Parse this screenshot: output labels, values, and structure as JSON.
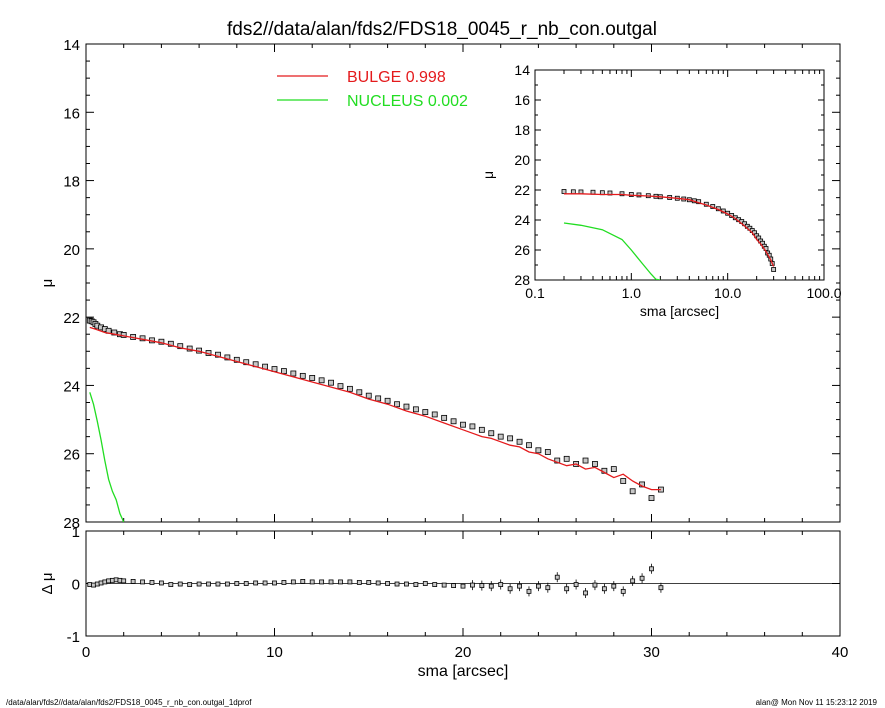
{
  "title": "fds2//data/alan/fds2/FDS18_0045_r_nb_con.outgal",
  "footer_left": "/data/alan/fds2//data/alan/fds2/FDS18_0045_r_nb_con.outgal_1dprof",
  "footer_right": "alan@  Mon Nov 11 15:23:12 2019",
  "colors": {
    "bulge": "#e41a1c",
    "nucleus": "#22dd22",
    "data": "#000000",
    "marker_fill": "#c8c8c8"
  },
  "chart_data": [
    {
      "id": "main",
      "type": "scatter",
      "ylabel": "μ",
      "xlim": [
        0,
        40
      ],
      "ylim": [
        28,
        14
      ],
      "y_inverted": true,
      "yticks": [
        14,
        16,
        18,
        20,
        22,
        24,
        26,
        28
      ],
      "legend": [
        {
          "label": "BULGE  0.998",
          "color": "#e41a1c"
        },
        {
          "label": "NUCLEUS  0.002",
          "color": "#22dd22"
        }
      ],
      "legend_position": "top-center",
      "series": [
        {
          "name": "BULGE",
          "kind": "line",
          "color": "#e41a1c",
          "x": [
            0.2,
            0.5,
            1,
            1.5,
            2,
            3,
            4,
            5,
            6,
            7,
            8,
            9,
            10,
            11,
            12,
            13,
            14,
            15,
            16,
            17,
            18,
            19,
            20,
            20.5,
            21,
            21.5,
            22,
            22.5,
            23,
            23.5,
            24,
            24.5,
            25,
            25.5,
            26,
            26.5,
            27,
            27.5,
            28,
            28.5,
            29,
            29.5,
            30,
            30.5
          ],
          "y": [
            22.3,
            22.35,
            22.45,
            22.5,
            22.55,
            22.65,
            22.75,
            22.9,
            23.0,
            23.15,
            23.3,
            23.45,
            23.6,
            23.75,
            23.9,
            24.05,
            24.2,
            24.4,
            24.55,
            24.75,
            24.9,
            25.1,
            25.3,
            25.4,
            25.5,
            25.55,
            25.65,
            25.75,
            25.8,
            25.95,
            26.0,
            26.15,
            26.25,
            26.35,
            26.3,
            26.45,
            26.4,
            26.55,
            26.7,
            26.6,
            26.8,
            26.95,
            27.05,
            27.05
          ]
        },
        {
          "name": "NUCLEUS",
          "kind": "line",
          "color": "#22dd22",
          "x": [
            0.2,
            0.4,
            0.6,
            0.8,
            1.0,
            1.2,
            1.4,
            1.6,
            1.8,
            2.0
          ],
          "y": [
            24.2,
            24.55,
            25.05,
            25.6,
            26.2,
            26.75,
            27.1,
            27.35,
            27.75,
            28.0
          ]
        },
        {
          "name": "data",
          "kind": "markers",
          "color": "#000000",
          "x": [
            0.2,
            0.3,
            0.4,
            0.5,
            0.6,
            0.8,
            1,
            1.2,
            1.5,
            1.8,
            2,
            2.5,
            3,
            3.5,
            4,
            4.5,
            5,
            5.5,
            6,
            6.5,
            7,
            7.5,
            8,
            8.5,
            9,
            9.5,
            10,
            10.5,
            11,
            11.5,
            12,
            12.5,
            13,
            13.5,
            14,
            14.5,
            15,
            15.5,
            16,
            16.5,
            17,
            17.5,
            18,
            18.5,
            19,
            19.5,
            20,
            20.5,
            21,
            21.5,
            22,
            22.5,
            23,
            23.5,
            24,
            24.5,
            25,
            25.5,
            26,
            26.5,
            27,
            27.5,
            28,
            28.5,
            29,
            29.5,
            30,
            30.5
          ],
          "y": [
            22.1,
            22.12,
            22.15,
            22.2,
            22.25,
            22.3,
            22.35,
            22.4,
            22.45,
            22.5,
            22.52,
            22.58,
            22.62,
            22.68,
            22.72,
            22.78,
            22.85,
            22.92,
            22.98,
            23.05,
            23.1,
            23.18,
            23.25,
            23.32,
            23.38,
            23.45,
            23.52,
            23.58,
            23.65,
            23.72,
            23.78,
            23.85,
            23.92,
            24.02,
            24.1,
            24.2,
            24.3,
            24.38,
            24.45,
            24.55,
            24.62,
            24.7,
            24.78,
            24.85,
            24.95,
            25.05,
            25.15,
            25.2,
            25.3,
            25.4,
            25.5,
            25.55,
            25.65,
            25.75,
            25.9,
            25.95,
            26.2,
            26.15,
            26.3,
            26.2,
            26.3,
            26.5,
            26.45,
            26.8,
            27.1,
            26.9,
            27.3,
            27.05
          ]
        }
      ]
    },
    {
      "id": "inset",
      "type": "scatter",
      "ylabel": "μ",
      "xlabel": "sma [arcsec]",
      "x_scale": "log",
      "xlim": [
        0.1,
        100
      ],
      "xticks": [
        "0.1",
        "1.0",
        "10.0",
        "100.0"
      ],
      "ylim": [
        28,
        14
      ],
      "y_inverted": true,
      "yticks": [
        14,
        16,
        18,
        20,
        22,
        24,
        26,
        28
      ],
      "series": [
        {
          "name": "BULGE",
          "kind": "line",
          "color": "#e41a1c",
          "x": [
            0.2,
            0.3,
            0.5,
            0.8,
            1,
            1.5,
            2,
            3,
            4,
            5,
            6,
            8,
            10,
            12,
            15,
            18,
            20,
            22,
            25,
            28,
            30
          ],
          "y": [
            22.25,
            22.25,
            22.3,
            22.3,
            22.35,
            22.4,
            22.45,
            22.55,
            22.65,
            22.85,
            23.0,
            23.3,
            23.6,
            23.9,
            24.4,
            24.85,
            25.3,
            25.6,
            26.1,
            26.65,
            27.1
          ]
        },
        {
          "name": "NUCLEUS",
          "kind": "line",
          "color": "#22dd22",
          "x": [
            0.2,
            0.3,
            0.5,
            0.8,
            1.0,
            1.3,
            1.6,
            1.8,
            2.0
          ],
          "y": [
            24.2,
            24.35,
            24.65,
            25.3,
            26.0,
            26.9,
            27.6,
            27.95,
            28.0
          ]
        },
        {
          "name": "data",
          "kind": "markers",
          "color": "#000000",
          "x": [
            0.2,
            0.25,
            0.3,
            0.4,
            0.5,
            0.6,
            0.8,
            1.0,
            1.2,
            1.5,
            1.8,
            2.0,
            2.5,
            3.0,
            3.5,
            4.0,
            4.5,
            5,
            6,
            7,
            8,
            9,
            10,
            11,
            12,
            13,
            14,
            15,
            16,
            17,
            18,
            19,
            20,
            21,
            22,
            23,
            24,
            25,
            26,
            27,
            28,
            29,
            30
          ],
          "y": [
            22.1,
            22.12,
            22.13,
            22.15,
            22.18,
            22.2,
            22.25,
            22.3,
            22.33,
            22.38,
            22.42,
            22.45,
            22.5,
            22.55,
            22.6,
            22.65,
            22.72,
            22.78,
            22.95,
            23.1,
            23.25,
            23.4,
            23.55,
            23.7,
            23.85,
            23.98,
            24.1,
            24.25,
            24.42,
            24.55,
            24.7,
            24.85,
            25.05,
            25.2,
            25.4,
            25.55,
            25.75,
            25.9,
            26.2,
            26.35,
            26.6,
            26.9,
            27.3
          ]
        }
      ]
    },
    {
      "id": "residual",
      "type": "scatter",
      "ylabel": "Δ μ",
      "xlabel": "sma [arcsec]",
      "xlim": [
        0,
        40
      ],
      "xticks": [
        0,
        10,
        20,
        30,
        40
      ],
      "ylim": [
        -1,
        1
      ],
      "yticks": [
        -1,
        0,
        1
      ],
      "series": [
        {
          "name": "residual",
          "kind": "markers",
          "color": "#000000",
          "x": [
            0.2,
            0.4,
            0.6,
            0.8,
            1.0,
            1.2,
            1.4,
            1.6,
            1.8,
            2.0,
            2.5,
            3,
            3.5,
            4,
            4.5,
            5,
            5.5,
            6,
            6.5,
            7,
            7.5,
            8,
            8.5,
            9,
            9.5,
            10,
            10.5,
            11,
            11.5,
            12,
            12.5,
            13,
            13.5,
            14,
            14.5,
            15,
            15.5,
            16,
            16.5,
            17,
            17.5,
            18,
            18.5,
            19,
            19.5,
            20,
            20.5,
            21,
            21.5,
            22,
            22.5,
            23,
            23.5,
            24,
            24.5,
            25,
            25.5,
            26,
            26.5,
            27,
            27.5,
            28,
            28.5,
            29,
            29.5,
            30,
            30.5
          ],
          "y": [
            -0.02,
            -0.03,
            -0.01,
            0.01,
            0.03,
            0.05,
            0.06,
            0.07,
            0.06,
            0.05,
            0.04,
            0.03,
            0.02,
            0.01,
            -0.02,
            -0.01,
            -0.02,
            -0.01,
            -0.01,
            -0.01,
            -0.01,
            0.0,
            0.0,
            0.01,
            0.01,
            0.01,
            0.02,
            0.03,
            0.04,
            0.03,
            0.03,
            0.03,
            0.03,
            0.03,
            0.02,
            0.02,
            0.01,
            0.0,
            -0.01,
            -0.01,
            -0.02,
            0.0,
            -0.02,
            -0.03,
            -0.04,
            -0.05,
            -0.03,
            -0.04,
            -0.05,
            -0.02,
            -0.1,
            -0.05,
            -0.15,
            -0.05,
            -0.08,
            0.12,
            -0.1,
            -0.02,
            -0.18,
            -0.03,
            -0.1,
            -0.05,
            -0.15,
            0.05,
            0.1,
            0.28,
            -0.08
          ]
        }
      ]
    }
  ]
}
